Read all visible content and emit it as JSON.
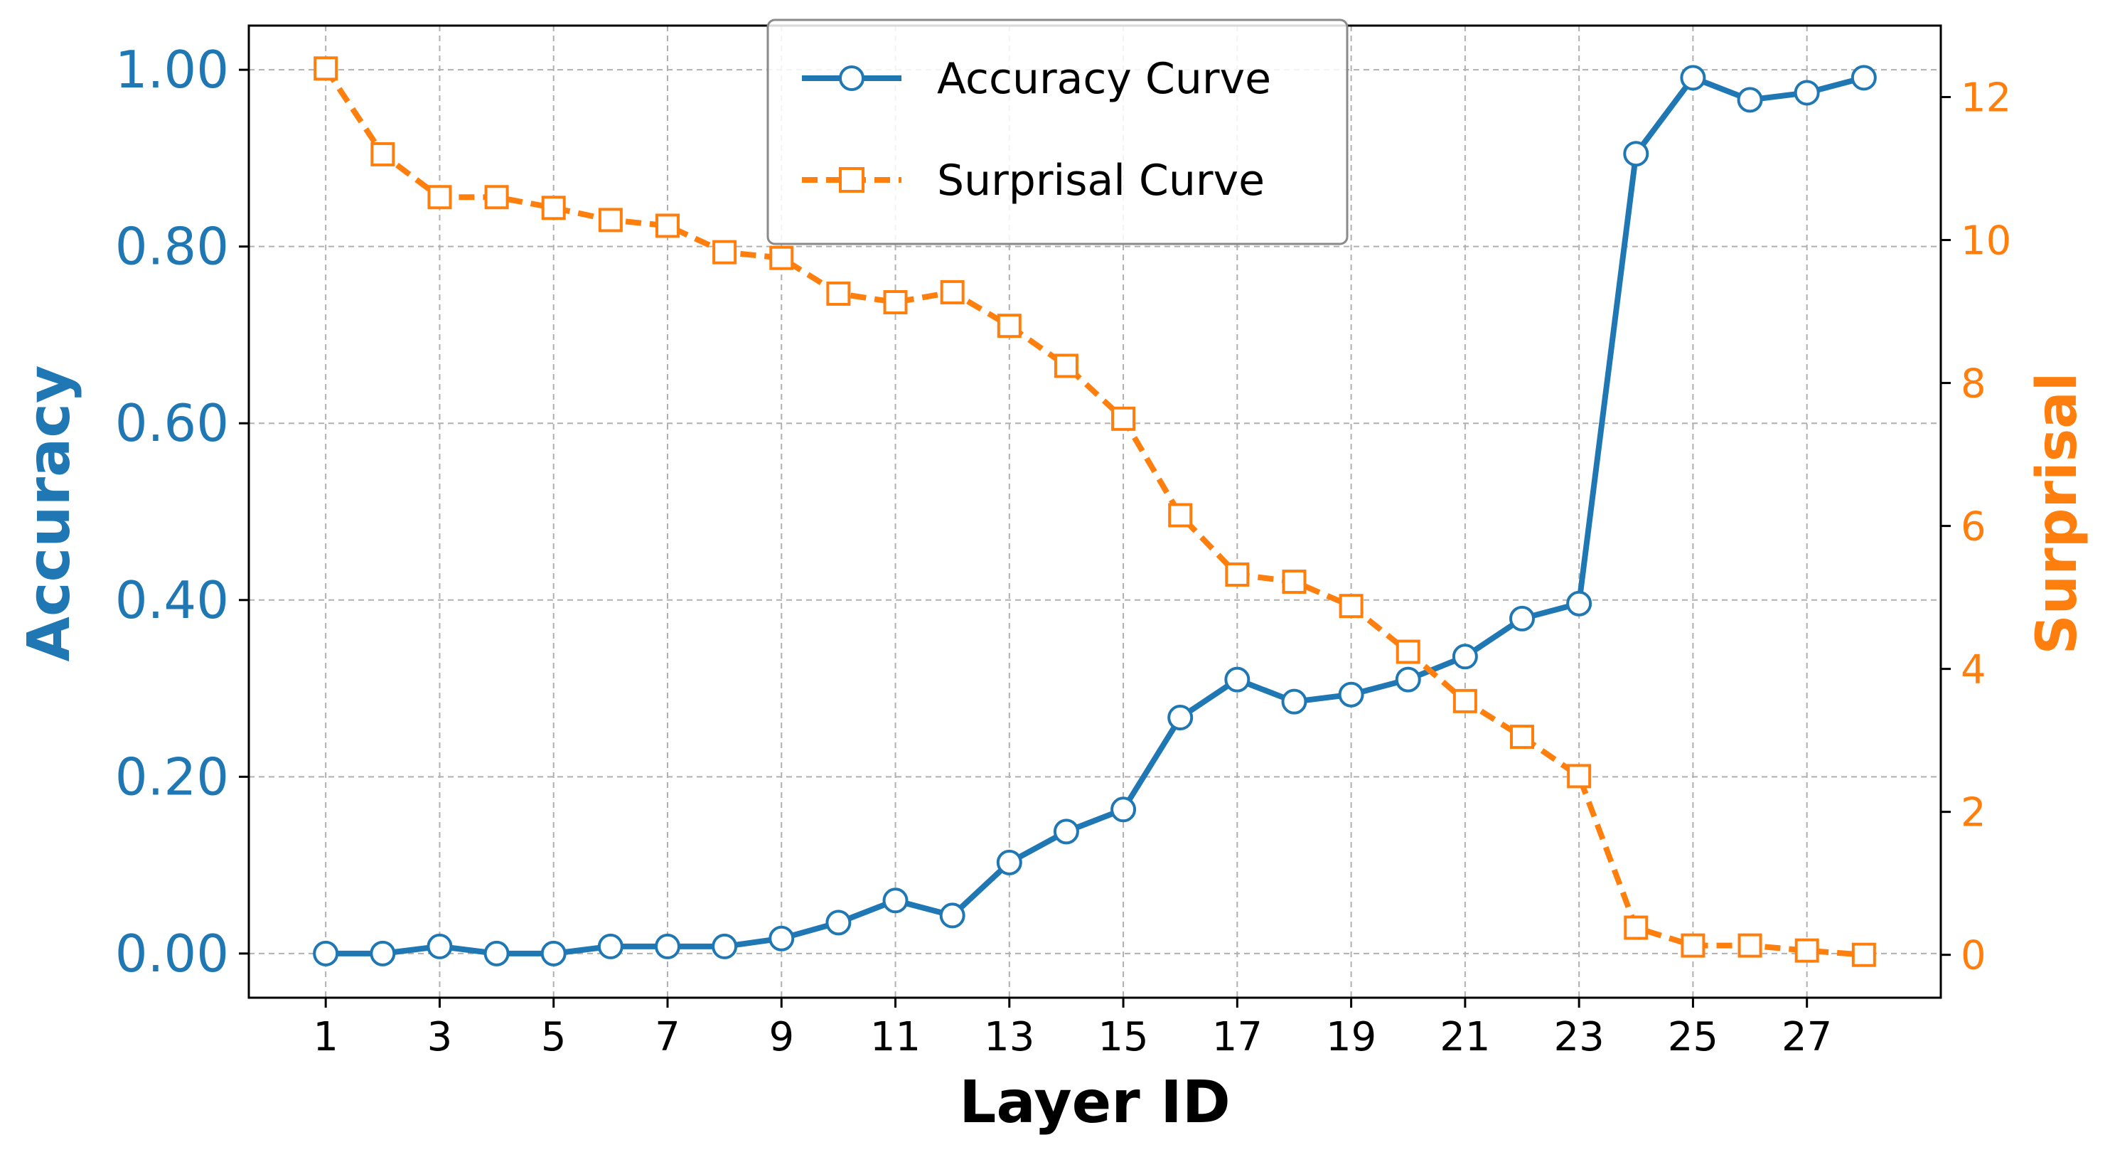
{
  "chart_data": {
    "type": "line",
    "xlabel": "Layer ID",
    "ylabel": "Accuracy",
    "y2label": "Surprisal",
    "x": [
      1,
      2,
      3,
      4,
      5,
      6,
      7,
      8,
      9,
      10,
      11,
      12,
      13,
      14,
      15,
      16,
      17,
      18,
      19,
      20,
      21,
      22,
      23,
      24,
      25,
      26,
      27,
      28
    ],
    "x_ticks": [
      "1",
      "3",
      "5",
      "7",
      "9",
      "11",
      "13",
      "15",
      "17",
      "19",
      "21",
      "23",
      "25",
      "27"
    ],
    "y_ticks": [
      "0.00",
      "0.20",
      "0.40",
      "0.60",
      "0.80",
      "1.00"
    ],
    "y2_ticks": [
      "0",
      "2",
      "4",
      "6",
      "8",
      "10",
      "12"
    ],
    "xlim": [
      -0.35,
      29.35
    ],
    "ylim": [
      -0.05,
      1.05
    ],
    "y2lim": [
      -0.6,
      13.0
    ],
    "grid": true,
    "legend_position": "top-center",
    "series": [
      {
        "name": "Accuracy Curve",
        "axis": "left",
        "color": "#1f77b4",
        "line_style": "solid",
        "marker": "circle",
        "values": [
          0.0,
          0.0,
          0.008,
          0.0,
          0.0,
          0.008,
          0.008,
          0.008,
          0.017,
          0.035,
          0.06,
          0.043,
          0.103,
          0.138,
          0.163,
          0.267,
          0.31,
          0.285,
          0.293,
          0.31,
          0.336,
          0.379,
          0.396,
          0.905,
          0.991,
          0.966,
          0.974,
          0.991
        ]
      },
      {
        "name": "Surprisal Curve",
        "axis": "right",
        "color": "#ff7f0e",
        "line_style": "dashed",
        "marker": "square",
        "values": [
          12.4,
          11.2,
          10.6,
          10.6,
          10.45,
          10.28,
          10.2,
          9.83,
          9.75,
          9.25,
          9.13,
          9.27,
          8.8,
          8.24,
          7.5,
          6.15,
          5.32,
          5.22,
          4.88,
          4.24,
          3.55,
          3.05,
          2.5,
          0.38,
          0.13,
          0.13,
          0.06,
          0.0
        ]
      }
    ]
  }
}
